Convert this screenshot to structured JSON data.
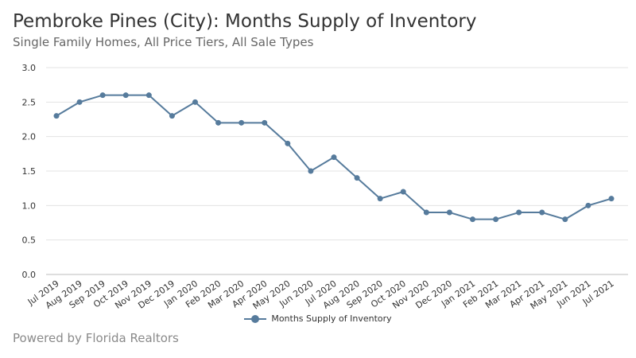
{
  "title": "Pembroke Pines (City): Months Supply of Inventory",
  "subtitle": "Single Family Homes, All Price Tiers, All Sale Types",
  "footer": "Powered by Florida Realtors",
  "colors": {
    "series": "#567b9c",
    "grid": "#e3e3e3",
    "axis": "#bdbdbd",
    "text": "#333333"
  },
  "chart_data": {
    "type": "line",
    "title": "Pembroke Pines (City): Months Supply of Inventory",
    "subtitle": "Single Family Homes, All Price Tiers, All Sale Types",
    "xlabel": "",
    "ylabel": "",
    "ylim": [
      0,
      3.0
    ],
    "yticks": [
      "0.0",
      "0.5",
      "1.0",
      "1.5",
      "2.0",
      "2.5",
      "3.0"
    ],
    "grid": true,
    "legend_position": "bottom",
    "categories": [
      "Jul 2019",
      "Aug 2019",
      "Sep 2019",
      "Oct 2019",
      "Nov 2019",
      "Dec 2019",
      "Jan 2020",
      "Feb 2020",
      "Mar 2020",
      "Apr 2020",
      "May 2020",
      "Jun 2020",
      "Jul 2020",
      "Aug 2020",
      "Sep 2020",
      "Oct 2020",
      "Nov 2020",
      "Dec 2020",
      "Jan 2021",
      "Feb 2021",
      "Mar 2021",
      "Apr 2021",
      "May 2021",
      "Jun 2021",
      "Jul 2021"
    ],
    "series": [
      {
        "name": "Months Supply of Inventory",
        "values": [
          2.3,
          2.5,
          2.6,
          2.6,
          2.6,
          2.3,
          2.5,
          2.2,
          2.2,
          2.2,
          1.9,
          1.5,
          1.7,
          1.4,
          1.1,
          1.2,
          0.9,
          0.9,
          0.8,
          0.8,
          0.9,
          0.9,
          0.8,
          1.0,
          1.1
        ]
      }
    ]
  }
}
